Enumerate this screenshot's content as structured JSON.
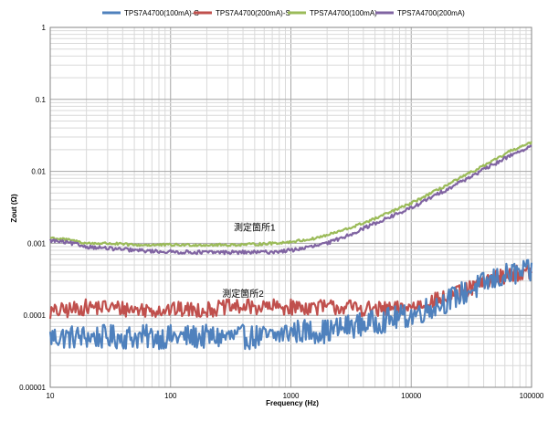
{
  "chart_data": {
    "type": "line",
    "title": "",
    "xlabel": "Frequency (Hz)",
    "ylabel": "Zout (Ω)",
    "xscale": "log",
    "yscale": "log",
    "xlim": [
      10,
      100000
    ],
    "ylim": [
      1e-05,
      1
    ],
    "x_tick_labels": [
      "10",
      "100",
      "1000",
      "10000",
      "100000"
    ],
    "y_tick_labels": [
      "0.00001",
      "0.0001",
      "0.001",
      "0.01",
      "0.1",
      "1"
    ],
    "grid": true,
    "legend_position": "top",
    "annotations": [
      {
        "text": "測定箇所1",
        "x": 500,
        "y": 0.0015
      },
      {
        "text": "測定箇所2",
        "x": 400,
        "y": 0.00018
      }
    ],
    "series": [
      {
        "name": "TPS7A4700(100mA)-S",
        "color": "#4f81bd",
        "points": [
          [
            10,
            5e-05
          ],
          [
            15,
            5e-05
          ],
          [
            20,
            5e-05
          ],
          [
            30,
            5e-05
          ],
          [
            50,
            5e-05
          ],
          [
            70,
            5e-05
          ],
          [
            100,
            5e-05
          ],
          [
            200,
            5e-05
          ],
          [
            300,
            5e-05
          ],
          [
            500,
            5e-05
          ],
          [
            700,
            5e-05
          ],
          [
            1000,
            6e-05
          ],
          [
            2000,
            6e-05
          ],
          [
            3000,
            7e-05
          ],
          [
            5000,
            8e-05
          ],
          [
            7000,
            9e-05
          ],
          [
            10000,
            0.0001
          ],
          [
            20000,
            0.00016
          ],
          [
            30000,
            0.00022
          ],
          [
            50000,
            0.00032
          ],
          [
            70000,
            0.00038
          ],
          [
            100000,
            0.0004
          ]
        ]
      },
      {
        "name": "TPS7A4700(200mA)-S",
        "color": "#c0504d",
        "points": [
          [
            10,
            0.00011
          ],
          [
            15,
            0.00012
          ],
          [
            20,
            0.00013
          ],
          [
            30,
            0.00013
          ],
          [
            50,
            0.00012
          ],
          [
            70,
            0.00012
          ],
          [
            100,
            0.00012
          ],
          [
            200,
            0.00012
          ],
          [
            300,
            0.00013
          ],
          [
            500,
            0.00013
          ],
          [
            700,
            0.00013
          ],
          [
            1000,
            0.00013
          ],
          [
            2000,
            0.00013
          ],
          [
            3000,
            0.00013
          ],
          [
            5000,
            0.00012
          ],
          [
            7000,
            0.00012
          ],
          [
            10000,
            0.00013
          ],
          [
            20000,
            0.00018
          ],
          [
            30000,
            0.00023
          ],
          [
            50000,
            0.00033
          ],
          [
            70000,
            0.00038
          ],
          [
            100000,
            0.0004
          ]
        ]
      },
      {
        "name": "TPS7A4700(100mA)",
        "color": "#9bbb59",
        "points": [
          [
            10,
            0.0012
          ],
          [
            15,
            0.0011
          ],
          [
            20,
            0.001
          ],
          [
            30,
            0.001
          ],
          [
            50,
            0.00095
          ],
          [
            70,
            0.00095
          ],
          [
            100,
            0.00095
          ],
          [
            200,
            0.00095
          ],
          [
            300,
            0.00095
          ],
          [
            500,
            0.00097
          ],
          [
            700,
            0.001
          ],
          [
            1000,
            0.00105
          ],
          [
            1500,
            0.00115
          ],
          [
            2000,
            0.0013
          ],
          [
            3000,
            0.0016
          ],
          [
            5000,
            0.0022
          ],
          [
            7000,
            0.0028
          ],
          [
            10000,
            0.0036
          ],
          [
            20000,
            0.0065
          ],
          [
            30000,
            0.0093
          ],
          [
            50000,
            0.0145
          ],
          [
            70000,
            0.02
          ],
          [
            100000,
            0.025
          ]
        ]
      },
      {
        "name": "TPS7A4700(200mA)",
        "color": "#8064a2",
        "points": [
          [
            10,
            0.0011
          ],
          [
            15,
            0.001
          ],
          [
            20,
            0.0009
          ],
          [
            30,
            0.00085
          ],
          [
            50,
            0.0008
          ],
          [
            70,
            0.00078
          ],
          [
            100,
            0.00076
          ],
          [
            200,
            0.00075
          ],
          [
            300,
            0.00075
          ],
          [
            500,
            0.00075
          ],
          [
            700,
            0.00076
          ],
          [
            1000,
            0.0008
          ],
          [
            1500,
            0.0009
          ],
          [
            2000,
            0.001
          ],
          [
            3000,
            0.0013
          ],
          [
            5000,
            0.0019
          ],
          [
            7000,
            0.0024
          ],
          [
            10000,
            0.0031
          ],
          [
            20000,
            0.0057
          ],
          [
            30000,
            0.0082
          ],
          [
            50000,
            0.0128
          ],
          [
            70000,
            0.0175
          ],
          [
            100000,
            0.022
          ]
        ]
      }
    ]
  }
}
